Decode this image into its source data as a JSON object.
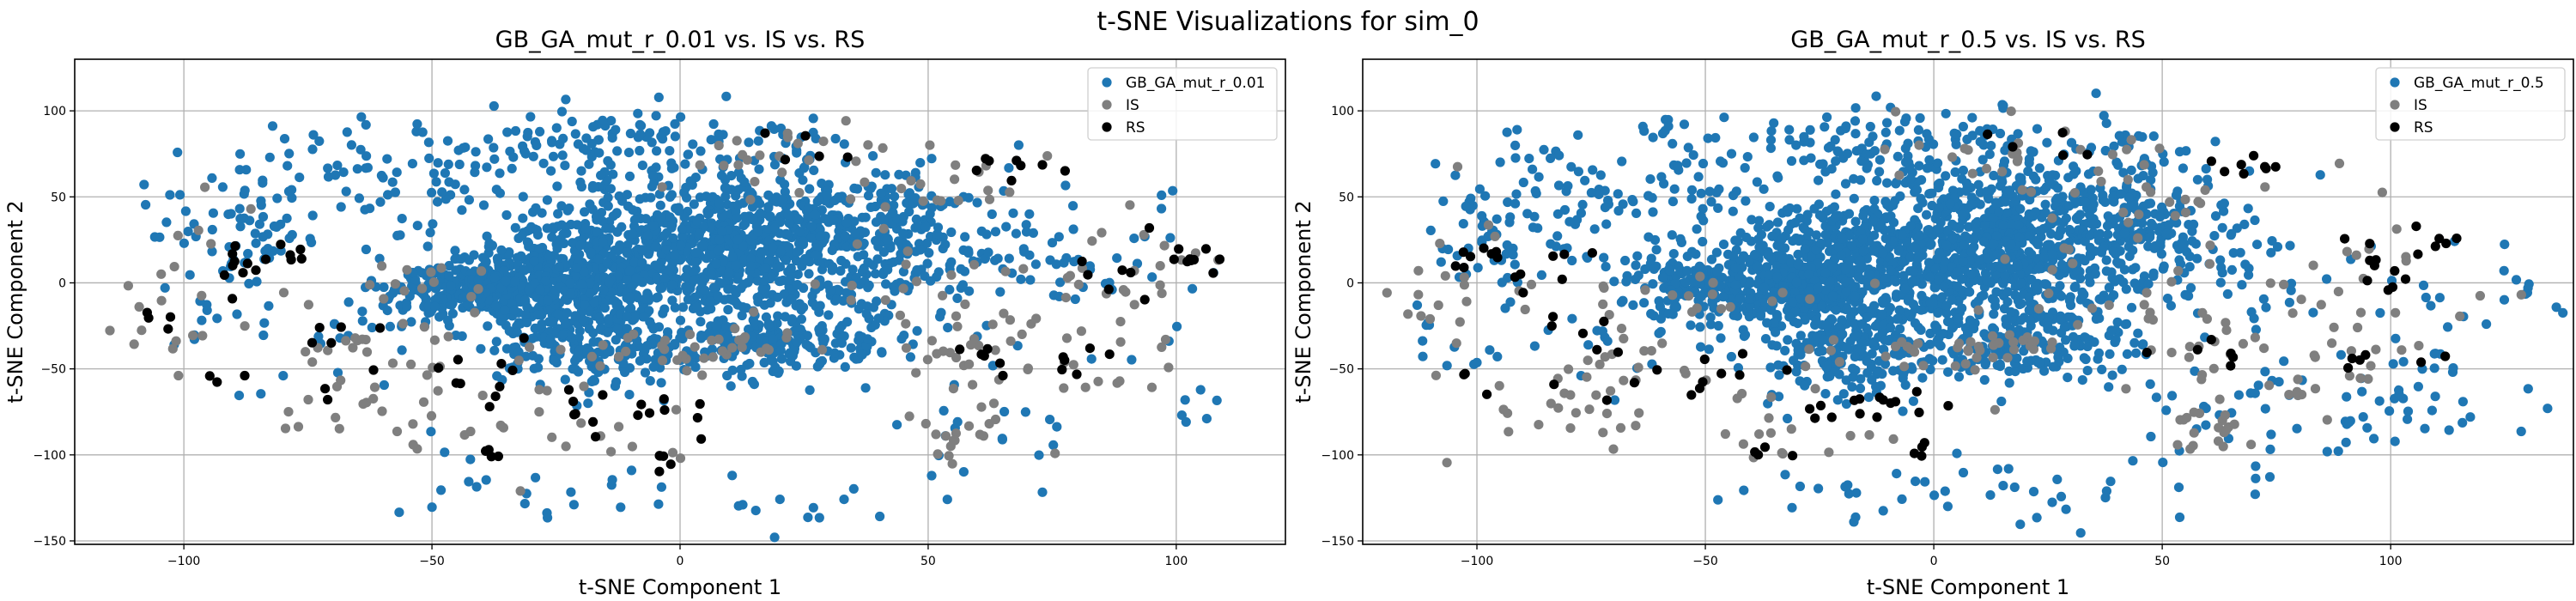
{
  "figure": {
    "suptitle": "t-SNE Visualizations for sim_0"
  },
  "chart_data": [
    {
      "type": "scatter",
      "title": "GB_GA_mut_r_0.01 vs. IS vs. RS",
      "xlabel": "t-SNE Component 1",
      "ylabel": "t-SNE Component 2",
      "xlim": [
        -122,
        122
      ],
      "ylim": [
        -152,
        130
      ],
      "xticks": [
        -100,
        -50,
        0,
        50,
        100
      ],
      "xtick_labels": [
        "−100",
        "−50",
        "0",
        "50",
        "100"
      ],
      "yticks": [
        -150,
        -100,
        -50,
        0,
        50,
        100
      ],
      "ytick_labels": [
        "−150",
        "−100",
        "−50",
        "0",
        "50",
        "100"
      ],
      "grid": true,
      "legend_position": "top-right",
      "series": [
        {
          "name": "GB_GA_mut_r_0.01",
          "color": "#1f77b4"
        },
        {
          "name": "IS",
          "color": "#7f7f7f"
        },
        {
          "name": "RS",
          "color": "#000000"
        }
      ],
      "clusters": [
        {
          "s": 0,
          "n": 900,
          "cx": 12,
          "cy": 20,
          "sx": 18,
          "sy": 22,
          "rot": -0.1
        },
        {
          "s": 0,
          "n": 420,
          "cx": -22,
          "cy": 5,
          "sx": 12,
          "sy": 18
        },
        {
          "s": 0,
          "n": 280,
          "cx": -40,
          "cy": -5,
          "sx": 10,
          "sy": 8
        },
        {
          "s": 0,
          "n": 200,
          "cx": 18,
          "cy": -35,
          "sx": 14,
          "sy": 9
        },
        {
          "s": 0,
          "n": 180,
          "cx": -20,
          "cy": -35,
          "sx": 10,
          "sy": 15
        },
        {
          "s": 0,
          "n": 150,
          "cx": 45,
          "cy": 30,
          "sx": 10,
          "sy": 22
        },
        {
          "s": 0,
          "n": 140,
          "cx": -10,
          "cy": 80,
          "sx": 25,
          "sy": 12
        },
        {
          "s": 0,
          "n": 80,
          "cx": -60,
          "cy": 55,
          "sx": 18,
          "sy": 18
        },
        {
          "s": 0,
          "n": 50,
          "cx": -88,
          "cy": 30,
          "sx": 8,
          "sy": 15
        },
        {
          "s": 0,
          "n": 30,
          "cx": 70,
          "cy": 10,
          "sx": 8,
          "sy": 20
        },
        {
          "s": 0,
          "n": 25,
          "cx": 5,
          "cy": -125,
          "sx": 25,
          "sy": 10
        },
        {
          "s": 0,
          "n": 25,
          "cx": -70,
          "cy": -30,
          "sx": 20,
          "sy": 25
        },
        {
          "s": 0,
          "n": 22,
          "cx": 90,
          "cy": 5,
          "sx": 10,
          "sy": 25
        },
        {
          "s": 0,
          "n": 20,
          "cx": 58,
          "cy": -80,
          "sx": 10,
          "sy": 20
        },
        {
          "s": 0,
          "n": 15,
          "cx": -95,
          "cy": -20,
          "sx": 10,
          "sy": 20
        },
        {
          "s": 0,
          "n": 10,
          "cx": -40,
          "cy": -115,
          "sx": 15,
          "sy": 10
        },
        {
          "s": 0,
          "n": 6,
          "cx": 105,
          "cy": -70,
          "sx": 3,
          "sy": 8
        },
        {
          "s": 1,
          "n": 35,
          "cx": 5,
          "cy": -38,
          "sx": 12,
          "sy": 6
        },
        {
          "s": 1,
          "n": 30,
          "cx": 25,
          "cy": 70,
          "sx": 20,
          "sy": 12
        },
        {
          "s": 1,
          "n": 30,
          "cx": -65,
          "cy": -55,
          "sx": 12,
          "sy": 20
        },
        {
          "s": 1,
          "n": 25,
          "cx": 60,
          "cy": -40,
          "sx": 10,
          "sy": 15
        },
        {
          "s": 1,
          "n": 25,
          "cx": 90,
          "cy": 0,
          "sx": 8,
          "sy": 22
        },
        {
          "s": 1,
          "n": 20,
          "cx": -100,
          "cy": -5,
          "sx": 8,
          "sy": 25
        },
        {
          "s": 1,
          "n": 20,
          "cx": 40,
          "cy": 0,
          "sx": 15,
          "sy": 15
        },
        {
          "s": 1,
          "n": 20,
          "cx": 60,
          "cy": -80,
          "sx": 6,
          "sy": 10
        },
        {
          "s": 1,
          "n": 20,
          "cx": -35,
          "cy": -60,
          "sx": 20,
          "sy": 20
        },
        {
          "s": 1,
          "n": 15,
          "cx": -55,
          "cy": 0,
          "sx": 15,
          "sy": 5
        },
        {
          "s": 1,
          "n": 12,
          "cx": 57,
          "cy": 48,
          "sx": 8,
          "sy": 8
        },
        {
          "s": 1,
          "n": 12,
          "cx": 85,
          "cy": -50,
          "sx": 8,
          "sy": 10
        },
        {
          "s": 1,
          "n": 10,
          "cx": -20,
          "cy": -95,
          "sx": 15,
          "sy": 8
        },
        {
          "s": 1,
          "n": 5,
          "cx": -70,
          "cy": -75,
          "sx": 8,
          "sy": 10
        },
        {
          "s": 2,
          "n": 15,
          "cx": -86,
          "cy": 12,
          "sx": 6,
          "sy": 6
        },
        {
          "s": 2,
          "n": 15,
          "cx": -15,
          "cy": -72,
          "sx": 8,
          "sy": 6
        },
        {
          "s": 2,
          "n": 12,
          "cx": 95,
          "cy": 10,
          "sx": 8,
          "sy": 10
        },
        {
          "s": 2,
          "n": 10,
          "cx": -40,
          "cy": -50,
          "sx": 10,
          "sy": 8
        },
        {
          "s": 2,
          "n": 8,
          "cx": 68,
          "cy": 67,
          "sx": 5,
          "sy": 3
        },
        {
          "s": 2,
          "n": 8,
          "cx": -70,
          "cy": -35,
          "sx": 6,
          "sy": 20
        },
        {
          "s": 2,
          "n": 6,
          "cx": 62,
          "cy": -40,
          "sx": 5,
          "sy": 5
        },
        {
          "s": 2,
          "n": 6,
          "cx": 80,
          "cy": -45,
          "sx": 5,
          "sy": 5
        },
        {
          "s": 2,
          "n": 5,
          "cx": 25,
          "cy": 78,
          "sx": 6,
          "sy": 5
        },
        {
          "s": 2,
          "n": 5,
          "cx": -5,
          "cy": -102,
          "sx": 3,
          "sy": 3
        },
        {
          "s": 2,
          "n": 4,
          "cx": -40,
          "cy": -100,
          "sx": 3,
          "sy": 3
        },
        {
          "s": 2,
          "n": 4,
          "cx": -105,
          "cy": -20,
          "sx": 3,
          "sy": 3
        },
        {
          "s": 2,
          "n": 4,
          "cx": 105,
          "cy": 15,
          "sx": 3,
          "sy": 3
        },
        {
          "s": 2,
          "n": 3,
          "cx": -90,
          "cy": -58,
          "sx": 3,
          "sy": 3
        }
      ]
    },
    {
      "type": "scatter",
      "title": "GB_GA_mut_r_0.5 vs. IS vs. RS",
      "xlabel": "t-SNE Component 1",
      "ylabel": "t-SNE Component 2",
      "xlim": [
        -125,
        140
      ],
      "ylim": [
        -152,
        130
      ],
      "xticks": [
        -100,
        -50,
        0,
        50,
        100
      ],
      "xtick_labels": [
        "−100",
        "−50",
        "0",
        "50",
        "100"
      ],
      "yticks": [
        -150,
        -100,
        -50,
        0,
        50,
        100
      ],
      "ytick_labels": [
        "−150",
        "−100",
        "−50",
        "0",
        "50",
        "100"
      ],
      "grid": true,
      "legend_position": "top-right",
      "series": [
        {
          "name": "GB_GA_mut_r_0.5",
          "color": "#1f77b4"
        },
        {
          "name": "IS",
          "color": "#7f7f7f"
        },
        {
          "name": "RS",
          "color": "#000000"
        }
      ],
      "clusters": [
        {
          "s": 0,
          "n": 950,
          "cx": 10,
          "cy": 20,
          "sx": 20,
          "sy": 24,
          "rot": -0.1
        },
        {
          "s": 0,
          "n": 380,
          "cx": -25,
          "cy": 5,
          "sx": 12,
          "sy": 18
        },
        {
          "s": 0,
          "n": 250,
          "cx": -45,
          "cy": 0,
          "sx": 12,
          "sy": 10
        },
        {
          "s": 0,
          "n": 200,
          "cx": 15,
          "cy": -35,
          "sx": 15,
          "sy": 10
        },
        {
          "s": 0,
          "n": 180,
          "cx": -18,
          "cy": -35,
          "sx": 10,
          "sy": 15
        },
        {
          "s": 0,
          "n": 150,
          "cx": 45,
          "cy": 30,
          "sx": 10,
          "sy": 22
        },
        {
          "s": 0,
          "n": 140,
          "cx": -10,
          "cy": 80,
          "sx": 28,
          "sy": 12
        },
        {
          "s": 0,
          "n": 100,
          "cx": -65,
          "cy": 55,
          "sx": 20,
          "sy": 18
        },
        {
          "s": 0,
          "n": 50,
          "cx": -95,
          "cy": 25,
          "sx": 10,
          "sy": 15
        },
        {
          "s": 0,
          "n": 45,
          "cx": 10,
          "cy": -122,
          "sx": 28,
          "sy": 10
        },
        {
          "s": 0,
          "n": 40,
          "cx": 95,
          "cy": -75,
          "sx": 15,
          "sy": 12
        },
        {
          "s": 0,
          "n": 30,
          "cx": 72,
          "cy": 10,
          "sx": 8,
          "sy": 20
        },
        {
          "s": 0,
          "n": 30,
          "cx": -70,
          "cy": -40,
          "sx": 20,
          "sy": 25
        },
        {
          "s": 0,
          "n": 25,
          "cx": 110,
          "cy": -20,
          "sx": 10,
          "sy": 25
        },
        {
          "s": 0,
          "n": 20,
          "cx": 60,
          "cy": -85,
          "sx": 10,
          "sy": 15
        },
        {
          "s": 0,
          "n": 10,
          "cx": -100,
          "cy": -20,
          "sx": 10,
          "sy": 15
        },
        {
          "s": 0,
          "n": 8,
          "cx": 128,
          "cy": 0,
          "sx": 6,
          "sy": 8
        },
        {
          "s": 1,
          "n": 35,
          "cx": 5,
          "cy": -40,
          "sx": 12,
          "sy": 6
        },
        {
          "s": 1,
          "n": 30,
          "cx": 25,
          "cy": 70,
          "sx": 20,
          "sy": 12
        },
        {
          "s": 1,
          "n": 30,
          "cx": -68,
          "cy": -55,
          "sx": 12,
          "sy": 20
        },
        {
          "s": 1,
          "n": 25,
          "cx": 60,
          "cy": -40,
          "sx": 10,
          "sy": 15
        },
        {
          "s": 1,
          "n": 25,
          "cx": 95,
          "cy": 0,
          "sx": 10,
          "sy": 25
        },
        {
          "s": 1,
          "n": 20,
          "cx": -105,
          "cy": -5,
          "sx": 10,
          "sy": 25
        },
        {
          "s": 1,
          "n": 20,
          "cx": 40,
          "cy": 0,
          "sx": 15,
          "sy": 15
        },
        {
          "s": 1,
          "n": 20,
          "cx": 60,
          "cy": -80,
          "sx": 6,
          "sy": 12
        },
        {
          "s": 1,
          "n": 20,
          "cx": -35,
          "cy": -60,
          "sx": 20,
          "sy": 20
        },
        {
          "s": 1,
          "n": 15,
          "cx": -55,
          "cy": -5,
          "sx": 15,
          "sy": 5
        },
        {
          "s": 1,
          "n": 12,
          "cx": 57,
          "cy": 48,
          "sx": 8,
          "sy": 8
        },
        {
          "s": 1,
          "n": 12,
          "cx": 90,
          "cy": -55,
          "sx": 8,
          "sy": 12
        },
        {
          "s": 1,
          "n": 10,
          "cx": -20,
          "cy": -95,
          "sx": 15,
          "sy": 8
        },
        {
          "s": 1,
          "n": 6,
          "cx": -82,
          "cy": -75,
          "sx": 8,
          "sy": 8
        },
        {
          "s": 2,
          "n": 15,
          "cx": -92,
          "cy": 12,
          "sx": 6,
          "sy": 6
        },
        {
          "s": 2,
          "n": 15,
          "cx": -15,
          "cy": -72,
          "sx": 8,
          "sy": 6
        },
        {
          "s": 2,
          "n": 12,
          "cx": 100,
          "cy": 10,
          "sx": 8,
          "sy": 12
        },
        {
          "s": 2,
          "n": 10,
          "cx": -45,
          "cy": -50,
          "sx": 10,
          "sy": 8
        },
        {
          "s": 2,
          "n": 8,
          "cx": 68,
          "cy": 67,
          "sx": 5,
          "sy": 3
        },
        {
          "s": 2,
          "n": 8,
          "cx": -75,
          "cy": -35,
          "sx": 6,
          "sy": 20
        },
        {
          "s": 2,
          "n": 6,
          "cx": 62,
          "cy": -42,
          "sx": 5,
          "sy": 5
        },
        {
          "s": 2,
          "n": 6,
          "cx": 95,
          "cy": -45,
          "sx": 5,
          "sy": 5
        },
        {
          "s": 2,
          "n": 5,
          "cx": 25,
          "cy": 78,
          "sx": 6,
          "sy": 5
        },
        {
          "s": 2,
          "n": 4,
          "cx": -5,
          "cy": -102,
          "sx": 3,
          "sy": 3
        },
        {
          "s": 2,
          "n": 4,
          "cx": -40,
          "cy": -100,
          "sx": 3,
          "sy": 3
        },
        {
          "s": 2,
          "n": 4,
          "cx": 110,
          "cy": 20,
          "sx": 3,
          "sy": 3
        },
        {
          "s": 2,
          "n": 3,
          "cx": -100,
          "cy": -58,
          "sx": 3,
          "sy": 3
        }
      ]
    }
  ]
}
